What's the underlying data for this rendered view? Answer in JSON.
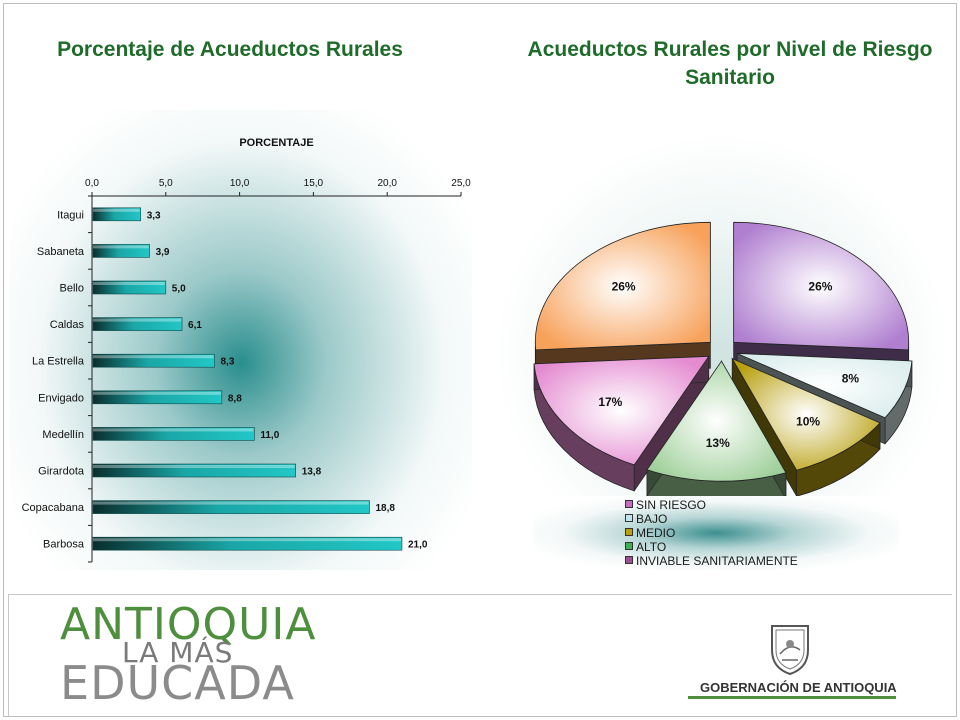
{
  "header": {
    "bar_title": "Porcentaje de Acueductos Rurales",
    "pie_title": "Acueductos Rurales por Nivel de Riesgo Sanitario"
  },
  "chart_data": [
    {
      "type": "bar",
      "orientation": "horizontal",
      "title": "PORCENTAJE",
      "categories": [
        "Itagui",
        "Sabaneta",
        "Bello",
        "Caldas",
        "La Estrella",
        "Envigado",
        "Medellín",
        "Girardota",
        "Copacabana",
        "Barbosa"
      ],
      "values": [
        3.3,
        3.9,
        5.0,
        6.1,
        8.3,
        8.8,
        11.0,
        13.8,
        18.8,
        21.0
      ],
      "value_labels": [
        "3,3",
        "3,9",
        "5,0",
        "6,1",
        "8,3",
        "8,8",
        "11,0",
        "13,8",
        "18,8",
        "21,0"
      ],
      "xlim": [
        0,
        25
      ],
      "xticks": [
        "0,0",
        "5,0",
        "10,0",
        "15,0",
        "20,0",
        "25,0"
      ],
      "axis_position": "top",
      "grid": false,
      "bar_color": "#22c7c7"
    },
    {
      "type": "pie",
      "style": "3d-exploded",
      "slices": [
        {
          "label": "SIN RIESGO",
          "value": 26,
          "value_label": "26%",
          "color": "#b07fd0"
        },
        {
          "label": "BAJO",
          "value": 8,
          "value_label": "8%",
          "color": "#d9ecec"
        },
        {
          "label": "MEDIO",
          "value": 10,
          "value_label": "10%",
          "color": "#b8a010"
        },
        {
          "label": "ALTO",
          "value": 13,
          "value_label": "13%",
          "color": "#9fd09a"
        },
        {
          "label": "INVIABLE SANITARIAMENTE",
          "value": 17,
          "value_label": "17%",
          "color": "#e48ad0"
        },
        {
          "label": "",
          "value": 26,
          "value_label": "26%",
          "color": "#f7a15a"
        }
      ],
      "legend": {
        "placement": "bottom",
        "items": [
          "SIN RIESGO",
          "BAJO",
          "MEDIO",
          "ALTO",
          "INVIABLE SANITARIAMENTE"
        ],
        "colors": [
          "#c46cc4",
          "#bfe6f0",
          "#b8a010",
          "#3fb050",
          "#a05090"
        ]
      }
    }
  ],
  "footer": {
    "logo_line1": "ANTIOQUIA",
    "logo_line2": "LA MÁS",
    "logo_line3": "EDUCADA",
    "government": "GOBERNACIÓN DE ANTIOQUIA"
  }
}
